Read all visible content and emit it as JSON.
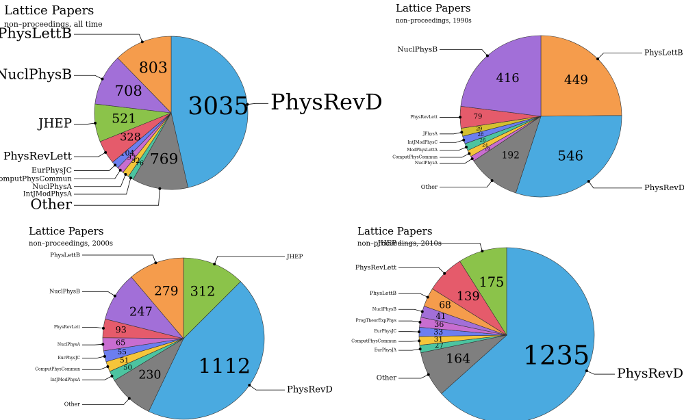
{
  "chart_data": [
    {
      "type": "pie",
      "title": "Lattice Papers",
      "subtitle": "non–proceedings, all time",
      "categories": [
        "PhysRevD",
        "Other",
        "IntJModPhysA",
        "NuclPhysA",
        "ComputPhysCommun",
        "EurPhysJC",
        "PhysRevLett",
        "JHEP",
        "NuclPhysB",
        "PhysLettB"
      ],
      "values": [
        3035,
        769,
        76,
        92,
        93,
        104,
        328,
        521,
        708,
        803
      ],
      "colors": [
        "#4aaae0",
        "#7f7f7f",
        "#4cc4a0",
        "#f5c53a",
        "#c86dd0",
        "#6c7ef0",
        "#e55b6b",
        "#8bc34a",
        "#a26fd8",
        "#f59c4c"
      ]
    },
    {
      "type": "pie",
      "title": "Lattice Papers",
      "subtitle": "non–proceedings, 1990s",
      "categories": [
        "PhysLettB",
        "PhysRevD",
        "Other",
        "NuclPhysA",
        "ComputPhysCommun",
        "ModPhysLettA",
        "IntJModPhysC",
        "JPhysA",
        "PhysRevLett",
        "NuclPhysB"
      ],
      "values": [
        449,
        546,
        192,
        19,
        24,
        26,
        28,
        29,
        79,
        416
      ],
      "colors": [
        "#f59c4c",
        "#4aaae0",
        "#7f7f7f",
        "#c86dd0",
        "#f5c53a",
        "#4cc4a0",
        "#6c7ef0",
        "#d4c030",
        "#e55b6b",
        "#a26fd8"
      ]
    },
    {
      "type": "pie",
      "title": "Lattice Papers",
      "subtitle": "non–proceedings, 2000s",
      "categories": [
        "JHEP",
        "PhysRevD",
        "Other",
        "IntJModPhysA",
        "ComputPhysCommun",
        "EurPhysJC",
        "NuclPhysA",
        "PhysRevLett",
        "NuclPhysB",
        "PhysLettB"
      ],
      "values": [
        312,
        1112,
        230,
        50,
        51,
        55,
        65,
        93,
        247,
        279
      ],
      "colors": [
        "#8bc34a",
        "#4aaae0",
        "#7f7f7f",
        "#4cc4a0",
        "#f5c53a",
        "#6c7ef0",
        "#c86dd0",
        "#e55b6b",
        "#a26fd8",
        "#f59c4c"
      ]
    },
    {
      "type": "pie",
      "title": "Lattice Papers",
      "subtitle": "non–proceedings, 2010s",
      "categories": [
        "PhysRevD",
        "Other",
        "EurPhysJA",
        "ComputPhysCommun",
        "EurPhysJC",
        "ProgTheorExpPhys",
        "NuclPhysB",
        "PhysLettB",
        "PhysRevLett",
        "JHEP"
      ],
      "values": [
        1235,
        164,
        27,
        31,
        33,
        36,
        41,
        68,
        139,
        175
      ],
      "colors": [
        "#4aaae0",
        "#7f7f7f",
        "#4cc4a0",
        "#f5c53a",
        "#6c7ef0",
        "#c86dd0",
        "#a26fd8",
        "#f59c4c",
        "#e55b6b",
        "#8bc34a"
      ]
    }
  ]
}
